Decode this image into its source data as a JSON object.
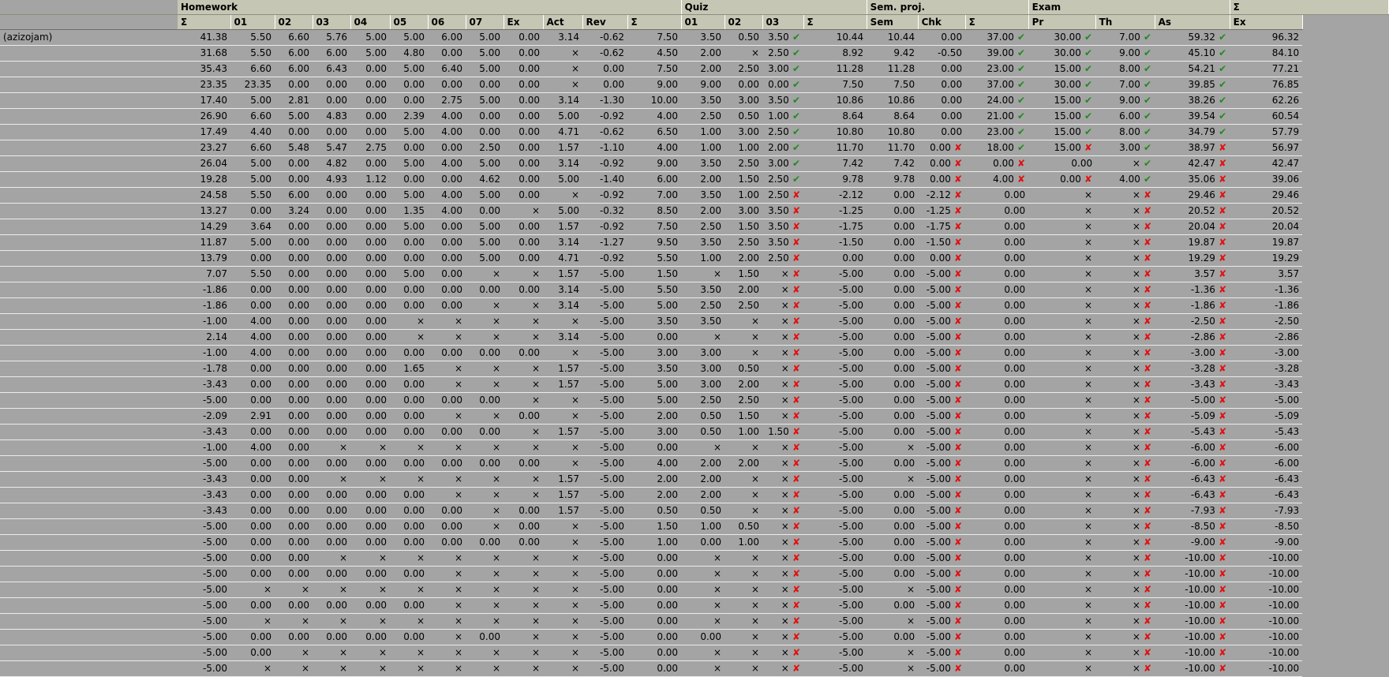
{
  "groups": [
    {
      "label": "",
      "span": 1,
      "blank": true
    },
    {
      "label": "Homework",
      "span": 12
    },
    {
      "label": "Quiz",
      "span": 4
    },
    {
      "label": "Sem. proj.",
      "span": 3
    },
    {
      "label": "Exam",
      "span": 3
    },
    {
      "label": "Σ",
      "span": 2
    }
  ],
  "columns": [
    "",
    "Σ",
    "01",
    "02",
    "03",
    "04",
    "05",
    "06",
    "07",
    "Ex",
    "Act",
    "Rev",
    "Σ",
    "01",
    "02",
    "03",
    "Σ",
    "Sem",
    "Chk",
    "Σ",
    "Pr",
    "Th",
    "As",
    "Ex"
  ],
  "marks": {
    "ok": "✔",
    "bad": "✘"
  },
  "rows": [
    [
      "(azizojam)",
      "41.38",
      "5.50",
      "6.60",
      "5.76",
      "5.00",
      "5.00",
      "6.00",
      "5.00",
      "0.00",
      "3.14",
      "-0.62",
      "7.50",
      "3.50",
      "0.50",
      "3.50|ok",
      "10.44",
      "10.44",
      "0.00",
      "37.00|ok",
      "30.00|ok",
      "7.00|ok",
      "59.32|ok",
      "96.32"
    ],
    [
      "",
      "31.68",
      "5.50",
      "6.00",
      "6.00",
      "5.00",
      "4.80",
      "0.00",
      "5.00",
      "0.00",
      "×",
      "-0.62",
      "4.50",
      "2.00",
      "×",
      "2.50|ok",
      "8.92",
      "9.42",
      "-0.50",
      "39.00|ok",
      "30.00|ok",
      "9.00|ok",
      "45.10|ok",
      "84.10"
    ],
    [
      "",
      "35.43",
      "6.60",
      "6.00",
      "6.43",
      "0.00",
      "5.00",
      "6.40",
      "5.00",
      "0.00",
      "×",
      "0.00",
      "7.50",
      "2.00",
      "2.50",
      "3.00|ok",
      "11.28",
      "11.28",
      "0.00",
      "23.00|ok",
      "15.00|ok",
      "8.00|ok",
      "54.21|ok",
      "77.21"
    ],
    [
      "",
      "23.35",
      "23.35",
      "0.00",
      "0.00",
      "0.00",
      "0.00",
      "0.00",
      "0.00",
      "0.00",
      "×",
      "0.00",
      "9.00",
      "9.00",
      "0.00",
      "0.00|ok",
      "7.50",
      "7.50",
      "0.00",
      "37.00|ok",
      "30.00|ok",
      "7.00|ok",
      "39.85|ok",
      "76.85"
    ],
    [
      "",
      "17.40",
      "5.00",
      "2.81",
      "0.00",
      "0.00",
      "0.00",
      "2.75",
      "5.00",
      "0.00",
      "3.14",
      "-1.30",
      "10.00",
      "3.50",
      "3.00",
      "3.50|ok",
      "10.86",
      "10.86",
      "0.00",
      "24.00|ok",
      "15.00|ok",
      "9.00|ok",
      "38.26|ok",
      "62.26"
    ],
    [
      "",
      "26.90",
      "6.60",
      "5.00",
      "4.83",
      "0.00",
      "2.39",
      "4.00",
      "0.00",
      "0.00",
      "5.00",
      "-0.92",
      "4.00",
      "2.50",
      "0.50",
      "1.00|ok",
      "8.64",
      "8.64",
      "0.00",
      "21.00|ok",
      "15.00|ok",
      "6.00|ok",
      "39.54|ok",
      "60.54"
    ],
    [
      "",
      "17.49",
      "4.40",
      "0.00",
      "0.00",
      "0.00",
      "5.00",
      "4.00",
      "0.00",
      "0.00",
      "4.71",
      "-0.62",
      "6.50",
      "1.00",
      "3.00",
      "2.50|ok",
      "10.80",
      "10.80",
      "0.00",
      "23.00|ok",
      "15.00|ok",
      "8.00|ok",
      "34.79|ok",
      "57.79"
    ],
    [
      "",
      "23.27",
      "6.60",
      "5.48",
      "5.47",
      "2.75",
      "0.00",
      "0.00",
      "2.50",
      "0.00",
      "1.57",
      "-1.10",
      "4.00",
      "1.00",
      "1.00",
      "2.00|ok",
      "11.70",
      "11.70",
      "0.00|bad",
      "18.00|ok",
      "15.00|bad",
      "3.00|ok",
      "38.97|bad",
      "56.97"
    ],
    [
      "",
      "26.04",
      "5.00",
      "0.00",
      "4.82",
      "0.00",
      "5.00",
      "4.00",
      "5.00",
      "0.00",
      "3.14",
      "-0.92",
      "9.00",
      "3.50",
      "2.50",
      "3.00|ok",
      "7.42",
      "7.42",
      "0.00|bad",
      "0.00|bad",
      "0.00",
      "×|ok",
      "42.47|bad",
      "42.47"
    ],
    [
      "",
      "19.28",
      "5.00",
      "0.00",
      "4.93",
      "1.12",
      "0.00",
      "0.00",
      "4.62",
      "0.00",
      "5.00",
      "-1.40",
      "6.00",
      "2.00",
      "1.50",
      "2.50|ok",
      "9.78",
      "9.78",
      "0.00|bad",
      "4.00|bad",
      "0.00|bad",
      "4.00|ok",
      "35.06|bad",
      "39.06"
    ],
    [
      "",
      "24.58",
      "5.50",
      "6.00",
      "0.00",
      "0.00",
      "5.00",
      "4.00",
      "5.00",
      "0.00",
      "×",
      "-0.92",
      "7.00",
      "3.50",
      "1.00",
      "2.50|bad",
      "-2.12",
      "0.00",
      "-2.12|bad",
      "0.00",
      "×",
      "×|bad",
      "29.46|bad",
      "29.46"
    ],
    [
      "",
      "13.27",
      "0.00",
      "3.24",
      "0.00",
      "0.00",
      "1.35",
      "4.00",
      "0.00",
      "×",
      "5.00",
      "-0.32",
      "8.50",
      "2.00",
      "3.00",
      "3.50|bad",
      "-1.25",
      "0.00",
      "-1.25|bad",
      "0.00",
      "×",
      "×|bad",
      "20.52|bad",
      "20.52"
    ],
    [
      "",
      "14.29",
      "3.64",
      "0.00",
      "0.00",
      "0.00",
      "5.00",
      "0.00",
      "5.00",
      "0.00",
      "1.57",
      "-0.92",
      "7.50",
      "2.50",
      "1.50",
      "3.50|bad",
      "-1.75",
      "0.00",
      "-1.75|bad",
      "0.00",
      "×",
      "×|bad",
      "20.04|bad",
      "20.04"
    ],
    [
      "",
      "11.87",
      "5.00",
      "0.00",
      "0.00",
      "0.00",
      "0.00",
      "0.00",
      "5.00",
      "0.00",
      "3.14",
      "-1.27",
      "9.50",
      "3.50",
      "2.50",
      "3.50|bad",
      "-1.50",
      "0.00",
      "-1.50|bad",
      "0.00",
      "×",
      "×|bad",
      "19.87|bad",
      "19.87"
    ],
    [
      "",
      "13.79",
      "0.00",
      "0.00",
      "0.00",
      "0.00",
      "0.00",
      "0.00",
      "5.00",
      "0.00",
      "4.71",
      "-0.92",
      "5.50",
      "1.00",
      "2.00",
      "2.50|bad",
      "0.00",
      "0.00",
      "0.00|bad",
      "0.00",
      "×",
      "×|bad",
      "19.29|bad",
      "19.29"
    ],
    [
      "",
      "7.07",
      "5.50",
      "0.00",
      "0.00",
      "0.00",
      "5.00",
      "0.00",
      "×",
      "×",
      "1.57",
      "-5.00",
      "1.50",
      "×",
      "1.50",
      "×|bad",
      "-5.00",
      "0.00",
      "-5.00|bad",
      "0.00",
      "×",
      "×|bad",
      "3.57|bad",
      "3.57"
    ],
    [
      "",
      "-1.86",
      "0.00",
      "0.00",
      "0.00",
      "0.00",
      "0.00",
      "0.00",
      "0.00",
      "0.00",
      "3.14",
      "-5.00",
      "5.50",
      "3.50",
      "2.00",
      "×|bad",
      "-5.00",
      "0.00",
      "-5.00|bad",
      "0.00",
      "×",
      "×|bad",
      "-1.36|bad",
      "-1.36"
    ],
    [
      "",
      "-1.86",
      "0.00",
      "0.00",
      "0.00",
      "0.00",
      "0.00",
      "0.00",
      "×",
      "×",
      "3.14",
      "-5.00",
      "5.00",
      "2.50",
      "2.50",
      "×|bad",
      "-5.00",
      "0.00",
      "-5.00|bad",
      "0.00",
      "×",
      "×|bad",
      "-1.86|bad",
      "-1.86"
    ],
    [
      "",
      "-1.00",
      "4.00",
      "0.00",
      "0.00",
      "0.00",
      "×",
      "×",
      "×",
      "×",
      "×",
      "-5.00",
      "3.50",
      "3.50",
      "×",
      "×|bad",
      "-5.00",
      "0.00",
      "-5.00|bad",
      "0.00",
      "×",
      "×|bad",
      "-2.50|bad",
      "-2.50"
    ],
    [
      "",
      "2.14",
      "4.00",
      "0.00",
      "0.00",
      "0.00",
      "×",
      "×",
      "×",
      "×",
      "3.14",
      "-5.00",
      "0.00",
      "×",
      "×",
      "×|bad",
      "-5.00",
      "0.00",
      "-5.00|bad",
      "0.00",
      "×",
      "×|bad",
      "-2.86|bad",
      "-2.86"
    ],
    [
      "",
      "-1.00",
      "4.00",
      "0.00",
      "0.00",
      "0.00",
      "0.00",
      "0.00",
      "0.00",
      "0.00",
      "×",
      "-5.00",
      "3.00",
      "3.00",
      "×",
      "×|bad",
      "-5.00",
      "0.00",
      "-5.00|bad",
      "0.00",
      "×",
      "×|bad",
      "-3.00|bad",
      "-3.00"
    ],
    [
      "",
      "-1.78",
      "0.00",
      "0.00",
      "0.00",
      "0.00",
      "1.65",
      "×",
      "×",
      "×",
      "1.57",
      "-5.00",
      "3.50",
      "3.00",
      "0.50",
      "×|bad",
      "-5.00",
      "0.00",
      "-5.00|bad",
      "0.00",
      "×",
      "×|bad",
      "-3.28|bad",
      "-3.28"
    ],
    [
      "",
      "-3.43",
      "0.00",
      "0.00",
      "0.00",
      "0.00",
      "0.00",
      "×",
      "×",
      "×",
      "1.57",
      "-5.00",
      "5.00",
      "3.00",
      "2.00",
      "×|bad",
      "-5.00",
      "0.00",
      "-5.00|bad",
      "0.00",
      "×",
      "×|bad",
      "-3.43|bad",
      "-3.43"
    ],
    [
      "",
      "-5.00",
      "0.00",
      "0.00",
      "0.00",
      "0.00",
      "0.00",
      "0.00",
      "0.00",
      "×",
      "×",
      "-5.00",
      "5.00",
      "2.50",
      "2.50",
      "×|bad",
      "-5.00",
      "0.00",
      "-5.00|bad",
      "0.00",
      "×",
      "×|bad",
      "-5.00|bad",
      "-5.00"
    ],
    [
      "",
      "-2.09",
      "2.91",
      "0.00",
      "0.00",
      "0.00",
      "0.00",
      "×",
      "×",
      "0.00",
      "×",
      "-5.00",
      "2.00",
      "0.50",
      "1.50",
      "×|bad",
      "-5.00",
      "0.00",
      "-5.00|bad",
      "0.00",
      "×",
      "×|bad",
      "-5.09|bad",
      "-5.09"
    ],
    [
      "",
      "-3.43",
      "0.00",
      "0.00",
      "0.00",
      "0.00",
      "0.00",
      "0.00",
      "0.00",
      "×",
      "1.57",
      "-5.00",
      "3.00",
      "0.50",
      "1.00",
      "1.50|bad",
      "-5.00",
      "0.00",
      "-5.00|bad",
      "0.00",
      "×",
      "×|bad",
      "-5.43|bad",
      "-5.43"
    ],
    [
      "",
      "-1.00",
      "4.00",
      "0.00",
      "×",
      "×",
      "×",
      "×",
      "×",
      "×",
      "×",
      "-5.00",
      "0.00",
      "×",
      "×",
      "×|bad",
      "-5.00",
      "×",
      "-5.00|bad",
      "0.00",
      "×",
      "×|bad",
      "-6.00|bad",
      "-6.00"
    ],
    [
      "",
      "-5.00",
      "0.00",
      "0.00",
      "0.00",
      "0.00",
      "0.00",
      "0.00",
      "0.00",
      "0.00",
      "×",
      "-5.00",
      "4.00",
      "2.00",
      "2.00",
      "×|bad",
      "-5.00",
      "0.00",
      "-5.00|bad",
      "0.00",
      "×",
      "×|bad",
      "-6.00|bad",
      "-6.00"
    ],
    [
      "",
      "-3.43",
      "0.00",
      "0.00",
      "×",
      "×",
      "×",
      "×",
      "×",
      "×",
      "1.57",
      "-5.00",
      "2.00",
      "2.00",
      "×",
      "×|bad",
      "-5.00",
      "×",
      "-5.00|bad",
      "0.00",
      "×",
      "×|bad",
      "-6.43|bad",
      "-6.43"
    ],
    [
      "",
      "-3.43",
      "0.00",
      "0.00",
      "0.00",
      "0.00",
      "0.00",
      "×",
      "×",
      "×",
      "1.57",
      "-5.00",
      "2.00",
      "2.00",
      "×",
      "×|bad",
      "-5.00",
      "0.00",
      "-5.00|bad",
      "0.00",
      "×",
      "×|bad",
      "-6.43|bad",
      "-6.43"
    ],
    [
      "",
      "-3.43",
      "0.00",
      "0.00",
      "0.00",
      "0.00",
      "0.00",
      "0.00",
      "×",
      "0.00",
      "1.57",
      "-5.00",
      "0.50",
      "0.50",
      "×",
      "×|bad",
      "-5.00",
      "0.00",
      "-5.00|bad",
      "0.00",
      "×",
      "×|bad",
      "-7.93|bad",
      "-7.93"
    ],
    [
      "",
      "-5.00",
      "0.00",
      "0.00",
      "0.00",
      "0.00",
      "0.00",
      "0.00",
      "×",
      "0.00",
      "×",
      "-5.00",
      "1.50",
      "1.00",
      "0.50",
      "×|bad",
      "-5.00",
      "0.00",
      "-5.00|bad",
      "0.00",
      "×",
      "×|bad",
      "-8.50|bad",
      "-8.50"
    ],
    [
      "",
      "-5.00",
      "0.00",
      "0.00",
      "0.00",
      "0.00",
      "0.00",
      "0.00",
      "0.00",
      "0.00",
      "×",
      "-5.00",
      "1.00",
      "0.00",
      "1.00",
      "×|bad",
      "-5.00",
      "0.00",
      "-5.00|bad",
      "0.00",
      "×",
      "×|bad",
      "-9.00|bad",
      "-9.00"
    ],
    [
      "",
      "-5.00",
      "0.00",
      "0.00",
      "×",
      "×",
      "×",
      "×",
      "×",
      "×",
      "×",
      "-5.00",
      "0.00",
      "×",
      "×",
      "×|bad",
      "-5.00",
      "0.00",
      "-5.00|bad",
      "0.00",
      "×",
      "×|bad",
      "-10.00|bad",
      "-10.00"
    ],
    [
      "",
      "-5.00",
      "0.00",
      "0.00",
      "0.00",
      "0.00",
      "0.00",
      "×",
      "×",
      "×",
      "×",
      "-5.00",
      "0.00",
      "×",
      "×",
      "×|bad",
      "-5.00",
      "0.00",
      "-5.00|bad",
      "0.00",
      "×",
      "×|bad",
      "-10.00|bad",
      "-10.00"
    ],
    [
      "",
      "-5.00",
      "×",
      "×",
      "×",
      "×",
      "×",
      "×",
      "×",
      "×",
      "×",
      "-5.00",
      "0.00",
      "×",
      "×",
      "×|bad",
      "-5.00",
      "×",
      "-5.00|bad",
      "0.00",
      "×",
      "×|bad",
      "-10.00|bad",
      "-10.00"
    ],
    [
      "",
      "-5.00",
      "0.00",
      "0.00",
      "0.00",
      "0.00",
      "0.00",
      "×",
      "×",
      "×",
      "×",
      "-5.00",
      "0.00",
      "×",
      "×",
      "×|bad",
      "-5.00",
      "0.00",
      "-5.00|bad",
      "0.00",
      "×",
      "×|bad",
      "-10.00|bad",
      "-10.00"
    ],
    [
      "",
      "-5.00",
      "×",
      "×",
      "×",
      "×",
      "×",
      "×",
      "×",
      "×",
      "×",
      "-5.00",
      "0.00",
      "×",
      "×",
      "×|bad",
      "-5.00",
      "×",
      "-5.00|bad",
      "0.00",
      "×",
      "×|bad",
      "-10.00|bad",
      "-10.00"
    ],
    [
      "",
      "-5.00",
      "0.00",
      "0.00",
      "0.00",
      "0.00",
      "0.00",
      "×",
      "0.00",
      "×",
      "×",
      "-5.00",
      "0.00",
      "0.00",
      "×",
      "×|bad",
      "-5.00",
      "0.00",
      "-5.00|bad",
      "0.00",
      "×",
      "×|bad",
      "-10.00|bad",
      "-10.00"
    ],
    [
      "",
      "-5.00",
      "0.00",
      "×",
      "×",
      "×",
      "×",
      "×",
      "×",
      "×",
      "×",
      "-5.00",
      "0.00",
      "×",
      "×",
      "×|bad",
      "-5.00",
      "×",
      "-5.00|bad",
      "0.00",
      "×",
      "×|bad",
      "-10.00|bad",
      "-10.00"
    ],
    [
      "",
      "-5.00",
      "×",
      "×",
      "×",
      "×",
      "×",
      "×",
      "×",
      "×",
      "×",
      "-5.00",
      "0.00",
      "×",
      "×",
      "×|bad",
      "-5.00",
      "×",
      "-5.00|bad",
      "0.00",
      "×",
      "×|bad",
      "-10.00|bad",
      "-10.00"
    ]
  ]
}
